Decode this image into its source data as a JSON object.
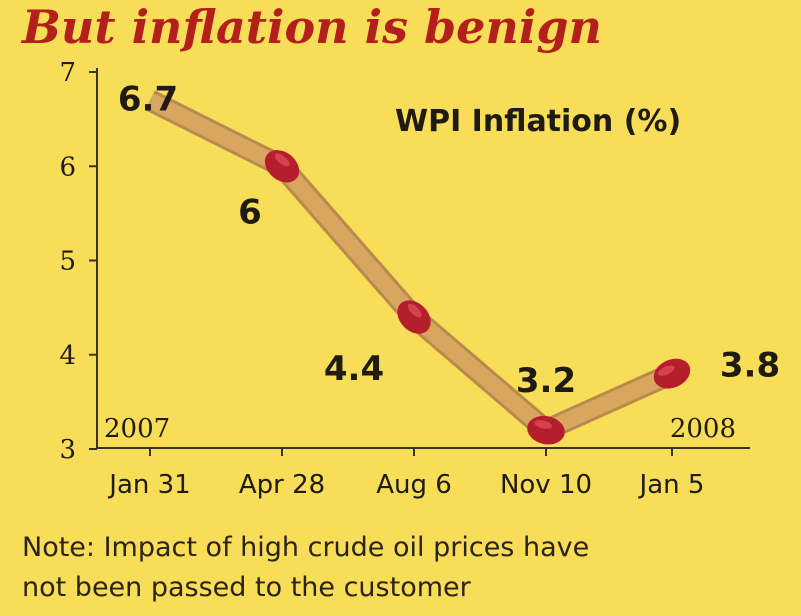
{
  "headline": "But inflation is benign",
  "note": {
    "line1": "Note: Impact of high crude oil prices have",
    "line2": "not been passed to the customer"
  },
  "colors": {
    "background": "#f7dd58",
    "headline": "#b3201c",
    "stick": "#d9a65f",
    "match_head": "#b51e2c",
    "axis": "#3a3222",
    "text": "#1f1a12"
  },
  "chart_data": {
    "type": "line",
    "title": "WPI Inflation (%)",
    "xlabel": "",
    "ylabel": "",
    "categories": [
      "Jan 31",
      "Apr 28",
      "Aug 6",
      "Nov 10",
      "Jan 5"
    ],
    "values": [
      6.7,
      6,
      4.4,
      3.2,
      3.8
    ],
    "data_labels": [
      "6.7",
      "6",
      "4.4",
      "3.2",
      "3.8"
    ],
    "ylim": [
      3,
      7
    ],
    "yticks": [
      3,
      4,
      5,
      6,
      7
    ],
    "year_labels": {
      "start": "2007",
      "end": "2008"
    },
    "grid": false,
    "legend": "none"
  }
}
